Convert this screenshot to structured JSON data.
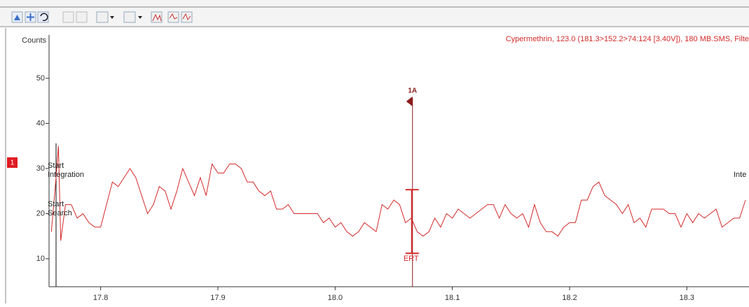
{
  "chart_data": {
    "type": "line",
    "title": "Cypermethrin, 123.0 (181.3>152.2>74:124 [3.40V]), 180 MB.SMS, Filte",
    "y_label": "Counts",
    "trace_tag": "1",
    "color": "#d42a2a",
    "x": [
      17.758,
      17.762,
      17.764,
      17.766,
      17.77,
      17.775,
      17.78,
      17.785,
      17.79,
      17.795,
      17.8,
      17.805,
      17.81,
      17.815,
      17.82,
      17.825,
      17.83,
      17.835,
      17.84,
      17.845,
      17.85,
      17.855,
      17.86,
      17.865,
      17.87,
      17.875,
      17.88,
      17.885,
      17.89,
      17.895,
      17.9,
      17.905,
      17.91,
      17.915,
      17.92,
      17.925,
      17.93,
      17.935,
      17.94,
      17.945,
      17.95,
      17.955,
      17.96,
      17.965,
      17.97,
      17.975,
      17.98,
      17.985,
      17.99,
      17.995,
      18.0,
      18.005,
      18.01,
      18.015,
      18.02,
      18.025,
      18.03,
      18.035,
      18.04,
      18.045,
      18.05,
      18.055,
      18.06,
      18.065,
      18.07,
      18.075,
      18.08,
      18.085,
      18.09,
      18.095,
      18.1,
      18.105,
      18.11,
      18.115,
      18.12,
      18.125,
      18.13,
      18.135,
      18.14,
      18.145,
      18.15,
      18.155,
      18.16,
      18.165,
      18.17,
      18.175,
      18.18,
      18.185,
      18.19,
      18.195,
      18.2,
      18.205,
      18.21,
      18.215,
      18.22,
      18.225,
      18.23,
      18.235,
      18.24,
      18.245,
      18.25,
      18.255,
      18.26,
      18.265,
      18.27,
      18.275,
      18.28,
      18.285,
      18.29,
      18.295,
      18.3,
      18.305,
      18.31,
      18.315,
      18.32,
      18.325,
      18.33,
      18.335,
      18.34,
      18.345,
      18.35
    ],
    "y": [
      16,
      28,
      35,
      14,
      22,
      22,
      19,
      20,
      18,
      17,
      17,
      22,
      27,
      26,
      28,
      30,
      28,
      24,
      20,
      22,
      26,
      25,
      21,
      25,
      30,
      27,
      24,
      28,
      24,
      31,
      29,
      29,
      31,
      31,
      30,
      27,
      27,
      25,
      24,
      25,
      21,
      21,
      22,
      20,
      20,
      20,
      20,
      20,
      18,
      19,
      17,
      18,
      16,
      15,
      16,
      18,
      17,
      16,
      22,
      21,
      23,
      22,
      18,
      19,
      16,
      15,
      16,
      19,
      17,
      20,
      19,
      21,
      20,
      19,
      20,
      21,
      22,
      22,
      19,
      22,
      20,
      19,
      20,
      17,
      22,
      18,
      16,
      16,
      15,
      17,
      18,
      18,
      23,
      23,
      26,
      27,
      24,
      23,
      22,
      20,
      22,
      18,
      19,
      17,
      21,
      21,
      21,
      20,
      20,
      17,
      20,
      18,
      20,
      19,
      20,
      21,
      17,
      18,
      19,
      19,
      23
    ],
    "xlim": [
      17.756,
      18.353
    ],
    "ylim": [
      3.8,
      59.6
    ],
    "xticks": [
      17.8,
      17.9,
      {
        "value": 18.0,
        "label": "18.0"
      },
      18.1,
      18.2,
      18.3
    ],
    "yticks": [
      10,
      20,
      30,
      40,
      50
    ],
    "annotations": [
      "Start",
      "Integration",
      "Start",
      "Search",
      "Inte"
    ],
    "peak": {
      "label": "1A",
      "x": 18.066,
      "window_label": "ERT",
      "window": [
        11.2,
        25.3
      ],
      "color": "#8b1a1a"
    }
  }
}
